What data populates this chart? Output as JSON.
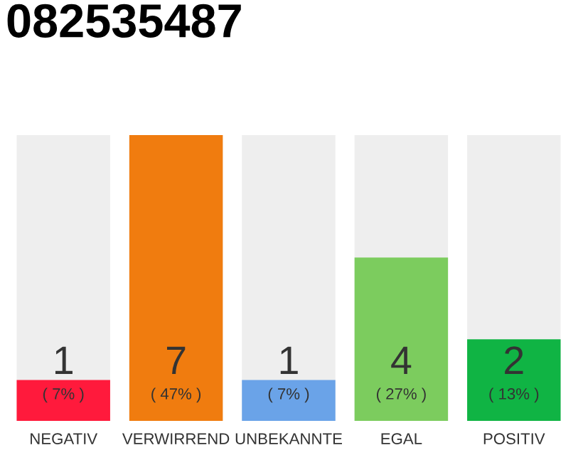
{
  "chart_data": {
    "type": "bar",
    "title": "082535487",
    "categories": [
      "NEGATIV",
      "VERWIRREND",
      "UNBEKANNTE",
      "EGAL",
      "POSITIV"
    ],
    "values": [
      1,
      7,
      1,
      4,
      2
    ],
    "colors": [
      "#ff1a3c",
      "#f07c0f",
      "#6aa3e8",
      "#7ccc5e",
      "#10b444"
    ],
    "data_labels": true,
    "annotations": [
      "( 7% )",
      "( 47% )",
      "( 7% )",
      "( 27% )",
      "( 13% )"
    ],
    "grid": false,
    "legend": false
  }
}
